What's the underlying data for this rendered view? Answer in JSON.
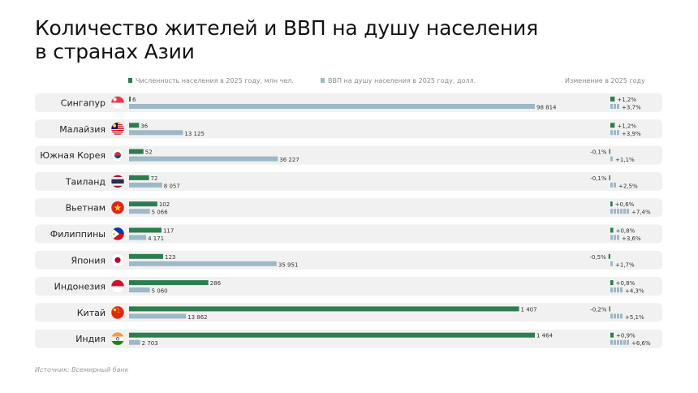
{
  "title": "Количество жителей и ВВП на душу населения в странах Азии",
  "legend": {
    "population_label": "Численность населения в 2025 году, млн чел.",
    "gdp_label": "ВВП на душу населения в 2025 году, долл.",
    "change_header": "Изменение в 2025 году"
  },
  "source": "Источник: Всемирный банк",
  "colors": {
    "population": "#2e7d4f",
    "gdp": "#9db8c6",
    "row_bg": "#f1f1f1"
  },
  "chart_data": {
    "type": "bar",
    "categories": [
      "Сингапур",
      "Малайзия",
      "Южная Корея",
      "Таиланд",
      "Вьетнам",
      "Филиппины",
      "Япония",
      "Индонезия",
      "Китай",
      "Индия"
    ],
    "flags": [
      "singapore-flag-icon",
      "malaysia-flag-icon",
      "south-korea-flag-icon",
      "thailand-flag-icon",
      "vietnam-flag-icon",
      "philippines-flag-icon",
      "japan-flag-icon",
      "indonesia-flag-icon",
      "china-flag-icon",
      "india-flag-icon"
    ],
    "series": [
      {
        "name": "Численность населения в 2025 году, млн чел.",
        "values": [
          6,
          36,
          52,
          72,
          102,
          117,
          123,
          286,
          1407,
          1464
        ],
        "labels": [
          "6",
          "36",
          "52",
          "72",
          "102",
          "117",
          "123",
          "286",
          "1 407",
          "1 464"
        ]
      },
      {
        "name": "ВВП на душу населения в 2025 году, долл.",
        "values": [
          98814,
          13125,
          36227,
          8057,
          5066,
          4171,
          35951,
          5060,
          13862,
          2703
        ],
        "labels": [
          "98 814",
          "13 125",
          "36 227",
          "8 057",
          "5 066",
          "4 171",
          "35 951",
          "5 060",
          "13 862",
          "2 703"
        ]
      }
    ],
    "change": {
      "header": "Изменение в 2025 году",
      "population_pct": [
        1.2,
        1.2,
        -0.1,
        -0.1,
        0.6,
        0.8,
        -0.5,
        0.8,
        -0.2,
        0.9
      ],
      "population_labels": [
        "+1,2%",
        "+1,2%",
        "-0,1%",
        "-0,1%",
        "+0,6%",
        "+0,8%",
        "-0,5%",
        "+0,8%",
        "-0,2%",
        "+0,9%"
      ],
      "gdp_pct": [
        3.7,
        3.9,
        1.1,
        2.5,
        7.4,
        3.6,
        1.7,
        4.3,
        5.1,
        6.6
      ],
      "gdp_labels": [
        "+3,7%",
        "+3,9%",
        "+1,1%",
        "+2,5%",
        "+7,4%",
        "+3,6%",
        "+1,7%",
        "+4,3%",
        "+5,1%",
        "+6,6%"
      ]
    },
    "population_max": 1464,
    "gdp_max": 98814
  }
}
